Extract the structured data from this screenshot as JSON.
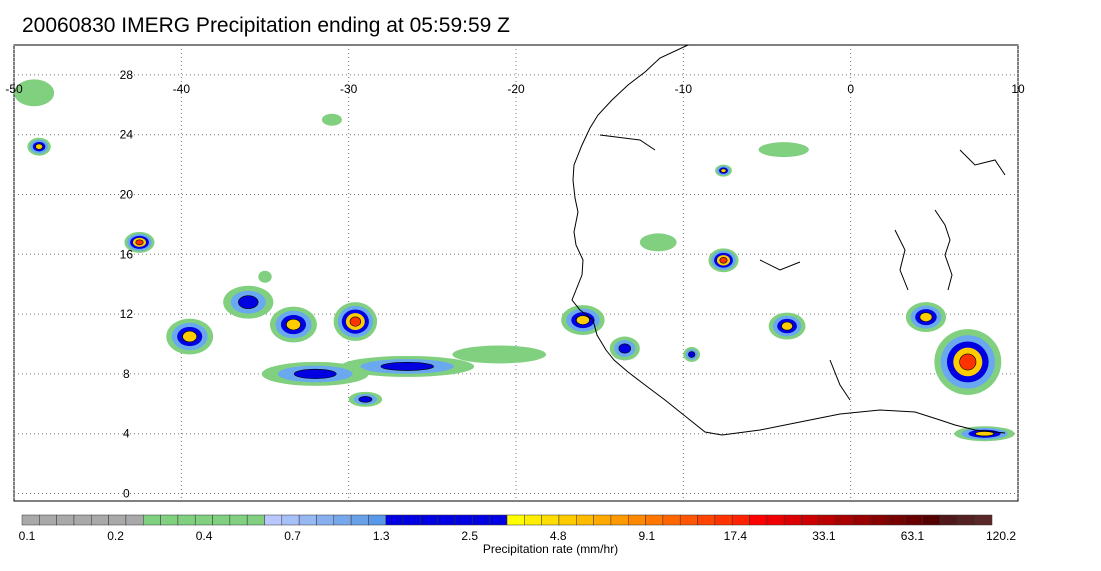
{
  "map": {
    "title": "20060830 IMERG Precipitation ending at 05:59:59 Z",
    "lon_ticks": [
      -50,
      -40,
      -30,
      -20,
      -10,
      0,
      10
    ],
    "lat_ticks": [
      28,
      24,
      20,
      16,
      12,
      8,
      4,
      0
    ],
    "lon_range": [
      -50,
      10
    ],
    "lat_range": [
      -0.5,
      30
    ],
    "grid": "dotted"
  },
  "colorbar": {
    "label": "Precipitation rate (mm/hr)",
    "tick_labels": [
      "0.1",
      "0.2",
      "0.4",
      "0.7",
      "1.3",
      "2.5",
      "4.8",
      "9.1",
      "17.4",
      "33.1",
      "63.1",
      "120.2"
    ],
    "colors": [
      "#a9a9a9",
      "#a9a9a9",
      "#a9a9a9",
      "#a9a9a9",
      "#a9a9a9",
      "#a9a9a9",
      "#a9a9a9",
      "#80d080",
      "#80d080",
      "#80d080",
      "#80d080",
      "#80d080",
      "#80d080",
      "#80d080",
      "#b8c8ff",
      "#a8c0f8",
      "#98b8f4",
      "#88b0f0",
      "#78a8ec",
      "#68a0ea",
      "#5898e8",
      "#0000e0",
      "#0000e0",
      "#0000e0",
      "#0000e0",
      "#0000e0",
      "#0000e0",
      "#0000e0",
      "#ffff00",
      "#ffee00",
      "#ffdd00",
      "#ffcc00",
      "#ffbb00",
      "#ffaa00",
      "#ff9900",
      "#ff8800",
      "#ff7700",
      "#ff6600",
      "#ff5500",
      "#ff4400",
      "#ff3300",
      "#ff2200",
      "#ff0000",
      "#ee0000",
      "#dd0000",
      "#cc0000",
      "#bb0000",
      "#aa0000",
      "#990000",
      "#880000",
      "#770000",
      "#660000",
      "#550000",
      "#501818",
      "#552020",
      "#5a2828"
    ]
  },
  "precip_blobs": [
    {
      "lon": -48.8,
      "lat": 26.8,
      "rx": 1.2,
      "ry": 0.9,
      "level": "light"
    },
    {
      "lon": -48.5,
      "lat": 23.2,
      "rx": 0.7,
      "ry": 0.6,
      "level": "heavy"
    },
    {
      "lon": -42.5,
      "lat": 16.8,
      "rx": 0.9,
      "ry": 0.7,
      "level": "extreme"
    },
    {
      "lon": -39.5,
      "lat": 10.5,
      "rx": 1.4,
      "ry": 1.2,
      "level": "heavy"
    },
    {
      "lon": -36.0,
      "lat": 12.8,
      "rx": 1.5,
      "ry": 1.1,
      "level": "moderate"
    },
    {
      "lon": -33.3,
      "lat": 11.3,
      "rx": 1.4,
      "ry": 1.2,
      "level": "heavy"
    },
    {
      "lon": -29.6,
      "lat": 11.5,
      "rx": 1.3,
      "ry": 1.3,
      "level": "extreme"
    },
    {
      "lon": -26.5,
      "lat": 8.5,
      "rx": 4.0,
      "ry": 0.7,
      "level": "moderate"
    },
    {
      "lon": -32.0,
      "lat": 8.0,
      "rx": 3.2,
      "ry": 0.8,
      "level": "moderate"
    },
    {
      "lon": -21.0,
      "lat": 9.3,
      "rx": 2.8,
      "ry": 0.6,
      "level": "light"
    },
    {
      "lon": -29.0,
      "lat": 6.3,
      "rx": 1.0,
      "ry": 0.5,
      "level": "moderate"
    },
    {
      "lon": -16.0,
      "lat": 11.6,
      "rx": 1.3,
      "ry": 1.0,
      "level": "heavy"
    },
    {
      "lon": -13.5,
      "lat": 9.7,
      "rx": 0.9,
      "ry": 0.8,
      "level": "moderate"
    },
    {
      "lon": -7.6,
      "lat": 15.6,
      "rx": 0.9,
      "ry": 0.8,
      "level": "extreme"
    },
    {
      "lon": -11.5,
      "lat": 16.8,
      "rx": 1.1,
      "ry": 0.6,
      "level": "light"
    },
    {
      "lon": -3.8,
      "lat": 11.2,
      "rx": 1.1,
      "ry": 0.9,
      "level": "heavy"
    },
    {
      "lon": -9.5,
      "lat": 9.3,
      "rx": 0.5,
      "ry": 0.5,
      "level": "moderate"
    },
    {
      "lon": -7.6,
      "lat": 21.6,
      "rx": 0.5,
      "ry": 0.4,
      "level": "heavy"
    },
    {
      "lon": 7.0,
      "lat": 8.8,
      "rx": 2.0,
      "ry": 2.2,
      "level": "extreme"
    },
    {
      "lon": 4.5,
      "lat": 11.8,
      "rx": 1.2,
      "ry": 1.0,
      "level": "heavy"
    },
    {
      "lon": 8.0,
      "lat": 4.0,
      "rx": 1.8,
      "ry": 0.5,
      "level": "heavy"
    },
    {
      "lon": -4.0,
      "lat": 23.0,
      "rx": 1.5,
      "ry": 0.5,
      "level": "light"
    },
    {
      "lon": -31.0,
      "lat": 25.0,
      "rx": 0.6,
      "ry": 0.4,
      "level": "light"
    },
    {
      "lon": -35.0,
      "lat": 14.5,
      "rx": 0.4,
      "ry": 0.4,
      "level": "light"
    }
  ]
}
